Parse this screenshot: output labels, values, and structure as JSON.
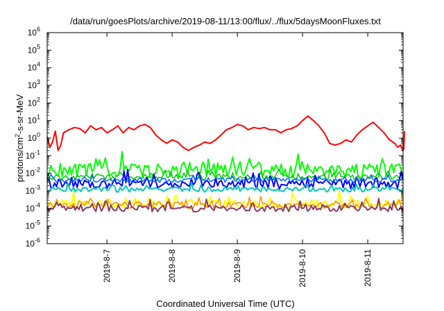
{
  "chart_data": {
    "type": "line",
    "title": "/data/run/goesPlots/archive/2019-08-11/13:00/flux/../flux/5daysMoonFluxes.txt",
    "xlabel": "Coordinated Universal Time (UTC)",
    "ylabel_parts": [
      "protons/cm",
      "2",
      "-s-sr-MeV"
    ],
    "y_scale": "log",
    "ylim": [
      1e-06,
      1000000.0
    ],
    "y_ticks": [
      {
        "exp": "-6",
        "value": 1e-06
      },
      {
        "exp": "-5",
        "value": 1e-05
      },
      {
        "exp": "-4",
        "value": 0.0001
      },
      {
        "exp": "-3",
        "value": 0.001
      },
      {
        "exp": "-2",
        "value": 0.01
      },
      {
        "exp": "-1",
        "value": 0.1
      },
      {
        "exp": "0",
        "value": 1
      },
      {
        "exp": "1",
        "value": 10
      },
      {
        "exp": "2",
        "value": 100
      },
      {
        "exp": "3",
        "value": 1000
      },
      {
        "exp": "4",
        "value": 10000
      },
      {
        "exp": "5",
        "value": 100000
      },
      {
        "exp": "6",
        "value": 1000000
      }
    ],
    "y_tick_base": "10",
    "xlim": [
      "2019-08-06 02:00",
      "2019-08-11 13:00"
    ],
    "x_ticks": [
      {
        "label": "2019-8-7",
        "value": "2019-08-07 00:00"
      },
      {
        "label": "2019-8-8",
        "value": "2019-08-08 00:00"
      },
      {
        "label": "2019-8-9",
        "value": "2019-08-09 00:00"
      },
      {
        "label": "2019-8-10",
        "value": "2019-08-10 00:00"
      },
      {
        "label": "2019-8-11",
        "value": "2019-08-11 00:00"
      }
    ],
    "grid": false,
    "legend": "none",
    "series": [
      {
        "color": "#ff0000",
        "width": 2,
        "x": [
          "2019-08-06 02:00",
          "2019-08-06 03:00",
          "2019-08-06 04:00",
          "2019-08-06 05:00",
          "2019-08-06 06:00",
          "2019-08-06 07:00",
          "2019-08-06 08:00",
          "2019-08-06 10:00",
          "2019-08-06 12:00",
          "2019-08-06 14:00",
          "2019-08-06 16:00",
          "2019-08-06 18:00",
          "2019-08-06 20:00",
          "2019-08-06 22:00",
          "2019-08-07 00:00",
          "2019-08-07 02:00",
          "2019-08-07 04:00",
          "2019-08-07 06:00",
          "2019-08-07 08:00",
          "2019-08-07 10:00",
          "2019-08-07 12:00",
          "2019-08-07 14:00",
          "2019-08-07 16:00",
          "2019-08-07 18:00",
          "2019-08-07 20:00",
          "2019-08-07 22:00",
          "2019-08-08 00:00",
          "2019-08-08 02:00",
          "2019-08-08 04:00",
          "2019-08-08 06:00",
          "2019-08-08 08:00",
          "2019-08-08 10:00",
          "2019-08-08 12:00",
          "2019-08-08 14:00",
          "2019-08-08 16:00",
          "2019-08-08 18:00",
          "2019-08-08 20:00",
          "2019-08-08 22:00",
          "2019-08-09 00:00",
          "2019-08-09 02:00",
          "2019-08-09 04:00",
          "2019-08-09 06:00",
          "2019-08-09 08:00",
          "2019-08-09 10:00",
          "2019-08-09 12:00",
          "2019-08-09 14:00",
          "2019-08-09 16:00",
          "2019-08-09 18:00",
          "2019-08-09 20:00",
          "2019-08-09 22:00",
          "2019-08-10 00:00",
          "2019-08-10 02:00",
          "2019-08-10 04:00",
          "2019-08-10 06:00",
          "2019-08-10 08:00",
          "2019-08-10 10:00",
          "2019-08-10 12:00",
          "2019-08-10 14:00",
          "2019-08-10 16:00",
          "2019-08-10 18:00",
          "2019-08-10 20:00",
          "2019-08-10 22:00",
          "2019-08-11 00:00",
          "2019-08-11 02:00",
          "2019-08-11 04:00",
          "2019-08-11 06:00",
          "2019-08-11 08:00",
          "2019-08-11 10:00",
          "2019-08-11 11:00",
          "2019-08-11 12:00",
          "2019-08-11 13:00"
        ],
        "y": [
          1.2,
          0.3,
          0.6,
          2.5,
          0.2,
          0.4,
          2,
          3,
          4,
          3.5,
          2,
          5,
          3,
          4,
          2,
          3,
          5,
          2,
          4,
          3,
          5,
          6,
          4,
          1.5,
          0.8,
          0.5,
          0.8,
          0.6,
          0.3,
          0.2,
          0.3,
          0.4,
          0.6,
          0.5,
          0.8,
          1.5,
          3,
          4,
          6,
          5,
          3,
          4,
          3.5,
          4,
          3,
          3,
          2,
          3,
          3.5,
          5,
          10,
          18,
          10,
          5,
          2,
          0.5,
          0.4,
          0.5,
          0.8,
          0.6,
          1.5,
          3,
          5,
          8,
          4,
          2,
          0.8,
          0.5,
          0.3,
          0.4,
          0.2
        ],
        "note_y_tail": [
          0.25,
          2.5
        ]
      },
      {
        "color": "#00ff00",
        "width": 2,
        "level": 0.014,
        "spread": 1.0,
        "seed": 11
      },
      {
        "color": "#00cc00",
        "width": 1.5,
        "level": 0.006,
        "spread": 0.4,
        "seed": 23
      },
      {
        "color": "#0000ff",
        "width": 2,
        "level": 0.0025,
        "spread": 0.7,
        "seed": 37
      },
      {
        "color": "#0066ff",
        "width": 1.5,
        "level": 0.004,
        "spread": 0.3,
        "seed": 41
      },
      {
        "color": "#00c8b4",
        "width": 2,
        "level": 0.0012,
        "spread": 0.35,
        "seed": 53
      },
      {
        "color": "#ffff00",
        "width": 2,
        "level": 0.00018,
        "spread": 0.6,
        "seed": 67
      },
      {
        "color": "#ff8c00",
        "width": 1.5,
        "level": 0.00015,
        "spread": 0.5,
        "seed": 71
      },
      {
        "color": "#8b3a62",
        "width": 2,
        "level": 0.0001,
        "spread": 0.45,
        "seed": 83
      }
    ]
  }
}
